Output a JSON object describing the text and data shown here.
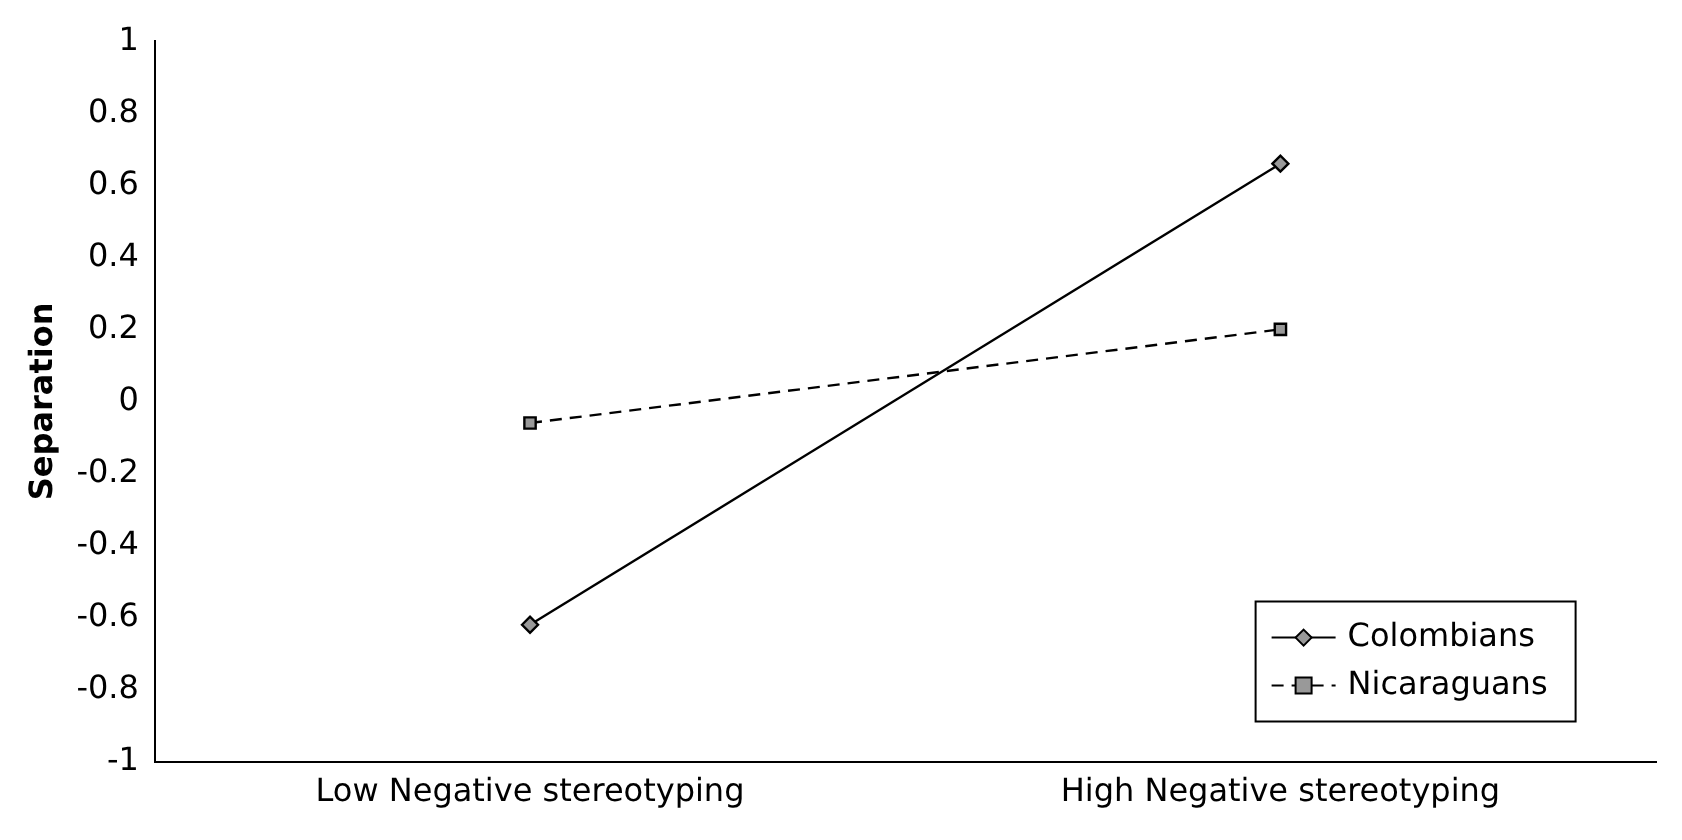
{
  "chart_data": {
    "type": "line",
    "ylabel": "Separation",
    "categories": [
      "Low Negative stereotyping",
      "High Negative stereotyping"
    ],
    "series": [
      {
        "name": "Colombians",
        "color": "#000000",
        "values": [
          -0.62,
          0.66
        ],
        "marker": "diamond",
        "line_style": "solid"
      },
      {
        "name": "Nicaraguans",
        "color": "#000000",
        "values": [
          -0.06,
          0.2
        ],
        "marker": "square",
        "line_style": "dashed"
      }
    ],
    "ylim": [
      -1,
      1
    ],
    "yticks": [
      -1,
      -0.8,
      -0.6,
      -0.4,
      -0.2,
      0,
      0.2,
      0.4,
      0.6,
      0.8,
      1
    ],
    "grid": false,
    "legend": "bottom right"
  }
}
